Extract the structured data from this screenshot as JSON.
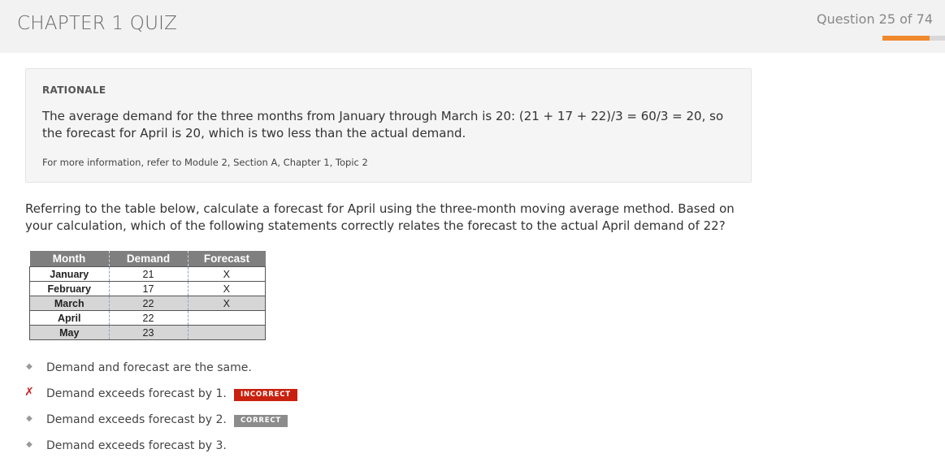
{
  "header": {
    "title": "CHAPTER 1 QUIZ",
    "question_counter": "Question 25 of 74",
    "progress_fraction": 0.75,
    "progress_color": "#f0882c"
  },
  "rationale": {
    "heading": "RATIONALE",
    "body": "The average demand for the three months from January through March is 20: (21 + 17 + 22)/3 = 60/3 = 20, so the forecast for April is 20, which is two less than the actual demand.",
    "more_info": "For more information, refer to Module 2, Section A, Chapter 1, Topic 2"
  },
  "question": {
    "text": "Referring to the table below, calculate a forecast for April using the three-month moving average method. Based on your calculation, which of the following statements correctly relates the forecast to the actual April demand of 22?"
  },
  "table": {
    "headers": [
      "Month",
      "Demand",
      "Forecast"
    ],
    "rows": [
      {
        "month": "January",
        "demand": "21",
        "forecast": "X"
      },
      {
        "month": "February",
        "demand": "17",
        "forecast": "X"
      },
      {
        "month": "March",
        "demand": "22",
        "forecast": "X"
      },
      {
        "month": "April",
        "demand": "22",
        "forecast": ""
      },
      {
        "month": "May",
        "demand": "23",
        "forecast": ""
      }
    ]
  },
  "options": [
    {
      "text": "Demand and forecast are the same.",
      "marker": "diamond-icon",
      "badge": ""
    },
    {
      "text": "Demand exceeds forecast by 1.",
      "marker": "x-mark-icon",
      "badge": "INCORRECT",
      "badge_color": "#c9210f"
    },
    {
      "text": "Demand exceeds forecast by 2.",
      "marker": "diamond-icon",
      "badge": "CORRECT",
      "badge_color": "#8c8c8c"
    },
    {
      "text": "Demand exceeds forecast by 3.",
      "marker": "diamond-icon",
      "badge": ""
    }
  ]
}
